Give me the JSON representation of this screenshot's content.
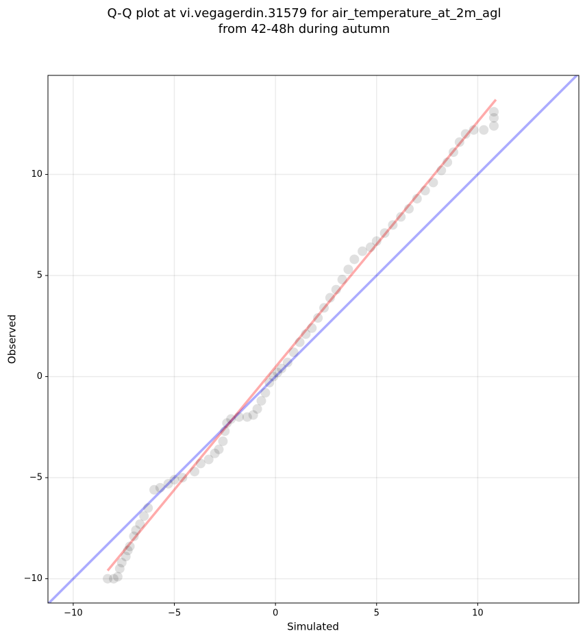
{
  "chart_data": {
    "type": "scatter",
    "title": [
      "Q-Q plot at vi.vegagerdin.31579 for air_temperature_at_2m_agl",
      "from 42-48h during autumn"
    ],
    "x_label": "Simulated",
    "y_label": "Observed",
    "xlim": [
      -11.25,
      15.0
    ],
    "ylim": [
      -11.2,
      14.9
    ],
    "xticks": [
      {
        "value": -10,
        "label": "−10"
      },
      {
        "value": -5,
        "label": "−5"
      },
      0,
      5,
      10
    ],
    "yticks": [
      {
        "value": -10,
        "label": "−10"
      },
      {
        "value": -5,
        "label": "−5"
      },
      0,
      5,
      10
    ],
    "grid": true,
    "points": {
      "color": "#000000",
      "alpha": 0.12,
      "x": [
        -8.3,
        -8.0,
        -7.8,
        -7.7,
        -7.6,
        -7.4,
        -7.3,
        -7.2,
        -7.0,
        -6.9,
        -6.7,
        -6.5,
        -6.3,
        -6.0,
        -5.7,
        -5.3,
        -5.0,
        -4.6,
        -4.0,
        -3.7,
        -3.3,
        -3.0,
        -2.8,
        -2.6,
        -2.5,
        -2.4,
        -2.2,
        -1.8,
        -1.4,
        -1.1,
        -0.9,
        -0.7,
        -0.5,
        -0.3,
        -0.1,
        0.1,
        0.3,
        0.6,
        0.9,
        1.2,
        1.5,
        1.8,
        2.1,
        2.4,
        2.7,
        3.0,
        3.3,
        3.6,
        3.9,
        4.3,
        4.7,
        5.0,
        5.4,
        5.8,
        6.2,
        6.6,
        7.0,
        7.4,
        7.8,
        8.2,
        8.5,
        8.8,
        9.1,
        9.4,
        9.8,
        10.3,
        10.8,
        10.8,
        10.8
      ],
      "y": [
        -10.0,
        -10.0,
        -9.9,
        -9.5,
        -9.2,
        -8.9,
        -8.6,
        -8.4,
        -7.9,
        -7.6,
        -7.3,
        -6.9,
        -6.5,
        -5.6,
        -5.5,
        -5.3,
        -5.1,
        -5.0,
        -4.7,
        -4.3,
        -4.1,
        -3.8,
        -3.6,
        -3.2,
        -2.7,
        -2.3,
        -2.1,
        -2.0,
        -2.0,
        -1.9,
        -1.6,
        -1.2,
        -0.8,
        -0.3,
        0.0,
        0.2,
        0.4,
        0.7,
        1.2,
        1.7,
        2.1,
        2.4,
        2.9,
        3.4,
        3.9,
        4.3,
        4.8,
        5.3,
        5.8,
        6.2,
        6.4,
        6.7,
        7.1,
        7.5,
        7.9,
        8.3,
        8.8,
        9.2,
        9.6,
        10.2,
        10.6,
        11.1,
        11.6,
        12.0,
        12.2,
        12.2,
        12.4,
        12.8,
        13.1
      ]
    },
    "lines": [
      {
        "color": "#0000ff",
        "alpha": 0.33,
        "x": [
          -11.25,
          15.0
        ],
        "y": [
          -11.25,
          15.0
        ]
      },
      {
        "color": "#ff0000",
        "alpha": 0.33,
        "x": [
          -8.3,
          10.9
        ],
        "y": [
          -9.6,
          13.7
        ]
      }
    ]
  }
}
